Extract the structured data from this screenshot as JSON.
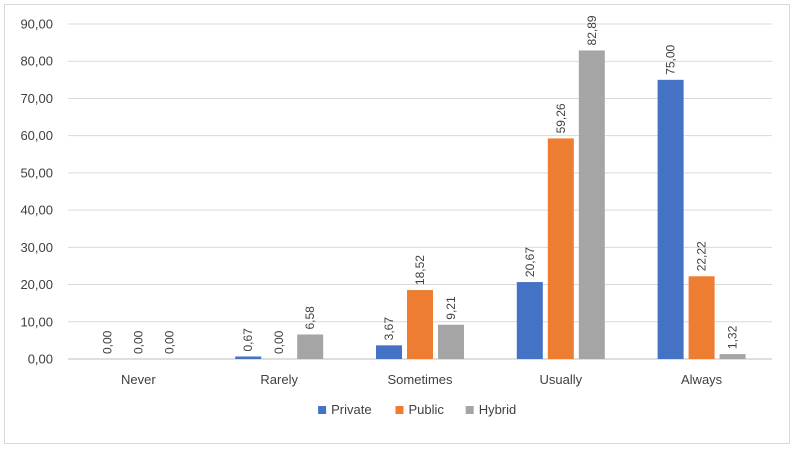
{
  "chart_data": {
    "type": "bar",
    "categories": [
      "Never",
      "Rarely",
      "Sometimes",
      "Usually",
      "Always"
    ],
    "series": [
      {
        "name": "Private",
        "color": "#4472c4",
        "values": [
          0.0,
          0.67,
          3.67,
          20.67,
          75.0
        ]
      },
      {
        "name": "Public",
        "color": "#ed7d31",
        "values": [
          0.0,
          0.0,
          18.52,
          59.26,
          22.22
        ]
      },
      {
        "name": "Hybrid",
        "color": "#a5a5a5",
        "values": [
          0.0,
          6.58,
          9.21,
          82.89,
          1.32
        ]
      }
    ],
    "data_labels": [
      [
        "0,00",
        "0,67",
        "3,67",
        "20,67",
        "75,00"
      ],
      [
        "0,00",
        "0,00",
        "18,52",
        "59,26",
        "22,22"
      ],
      [
        "0,00",
        "6,58",
        "9,21",
        "82,89",
        "1,32"
      ]
    ],
    "y_ticks": [
      0,
      10,
      20,
      30,
      40,
      50,
      60,
      70,
      80,
      90
    ],
    "y_tick_labels": [
      "0,00",
      "10,00",
      "20,00",
      "30,00",
      "40,00",
      "50,00",
      "60,00",
      "70,00",
      "80,00",
      "90,00"
    ],
    "ylim": [
      0,
      90
    ],
    "grid": true,
    "legend_position": "bottom"
  }
}
